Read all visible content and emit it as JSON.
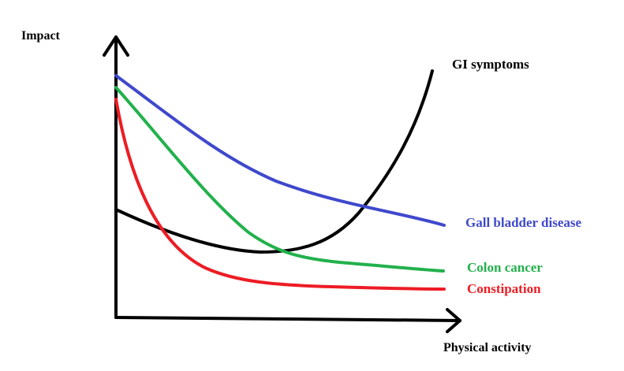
{
  "axes": {
    "y_label": "Impact",
    "x_label": "Physical activity"
  },
  "curves": [
    {
      "key": "gi",
      "label": "GI symptoms",
      "color": "#000000"
    },
    {
      "key": "gall",
      "label": "Gall bladder disease",
      "color": "#3f48cc"
    },
    {
      "key": "colon",
      "label": "Colon cancer",
      "color": "#22b14c"
    },
    {
      "key": "constipation",
      "label": "Constipation",
      "color": "#ed1c24"
    }
  ]
}
